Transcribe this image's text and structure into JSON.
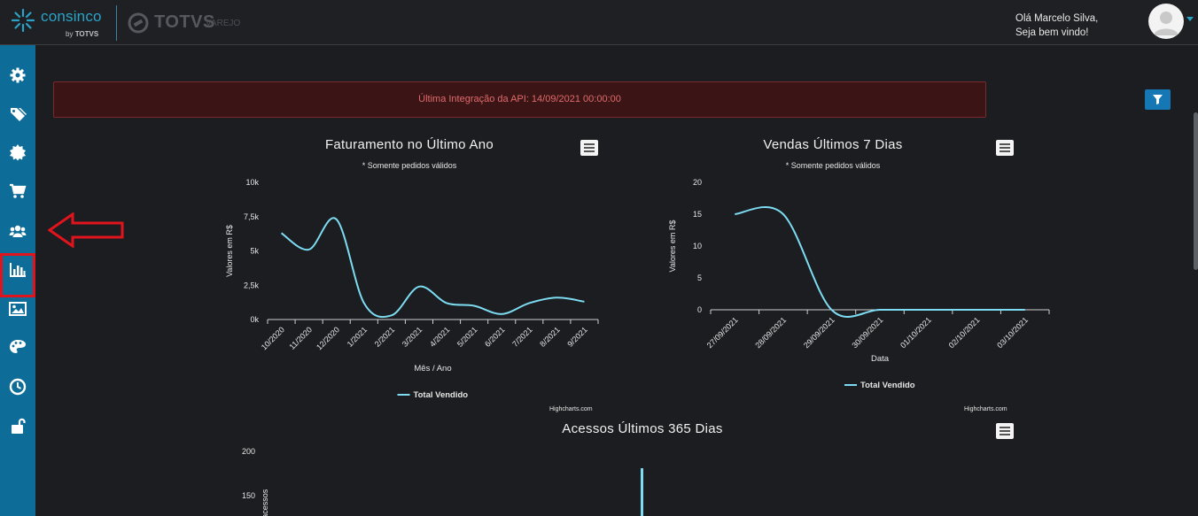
{
  "header": {
    "brand": "consinco",
    "brand_by": "by",
    "brand_by_company": "TOTVS",
    "partner_name": "TOTVS",
    "partner_sub": "VAREJO",
    "greeting_line1": "Olá Marcelo Silva,",
    "greeting_line2": "Seja bem vindo!"
  },
  "sidebar": {
    "items": [
      {
        "icon": "gear-icon"
      },
      {
        "icon": "tags-icon"
      },
      {
        "icon": "badge-icon"
      },
      {
        "icon": "cart-icon"
      },
      {
        "icon": "users-icon",
        "highlighted": true
      },
      {
        "icon": "bar-chart-icon"
      },
      {
        "icon": "image-icon"
      },
      {
        "icon": "palette-icon"
      },
      {
        "icon": "clock-icon"
      },
      {
        "icon": "unlock-icon"
      }
    ],
    "accent": "#0e6d98"
  },
  "alert": {
    "text": "Última Integração da API: 14/09/2021 00:00:00"
  },
  "credits": "Highcharts.com",
  "chart_data": [
    {
      "type": "line",
      "title": "Faturamento no Último Ano",
      "subtitle": "* Somente pedidos válidos",
      "xlabel": "Mês / Ano",
      "ylabel": "Valores em R$",
      "categories": [
        "10/2020",
        "11/2020",
        "12/2020",
        "1/2021",
        "2/2021",
        "3/2021",
        "4/2021",
        "5/2021",
        "6/2021",
        "7/2021",
        "8/2021",
        "9/2021"
      ],
      "ytick_labels": [
        "0k",
        "2,5k",
        "5k",
        "7,5k",
        "10k"
      ],
      "ylim": [
        0,
        10000
      ],
      "series": [
        {
          "name": "Total Vendido",
          "values": [
            6300,
            5100,
            7300,
            1200,
            300,
            2400,
            1200,
            1000,
            400,
            1200,
            1600,
            1300
          ]
        }
      ],
      "legend": "bottom-center",
      "color": "#7ddcf2"
    },
    {
      "type": "line",
      "title": "Vendas Últimos 7 Dias",
      "subtitle": "* Somente pedidos válidos",
      "xlabel": "Data",
      "ylabel": "Valores em R$",
      "categories": [
        "27/09/2021",
        "28/09/2021",
        "29/09/2021",
        "30/09/2021",
        "01/10/2021",
        "02/10/2021",
        "03/10/2021"
      ],
      "ytick_labels": [
        "0",
        "5",
        "10",
        "15",
        "20"
      ],
      "ylim": [
        0,
        20
      ],
      "series": [
        {
          "name": "Total Vendido",
          "values": [
            15,
            15,
            0,
            0,
            0,
            0,
            0
          ]
        }
      ],
      "legend": "bottom-center",
      "color": "#7ddcf2"
    },
    {
      "type": "bar",
      "title": "Acessos Últimos 365 Dias",
      "ylabel": "e acessos",
      "ytick_labels": [
        "150",
        "200"
      ],
      "ylim": [
        0,
        200
      ],
      "series": [
        {
          "values": [
            180
          ]
        }
      ],
      "color": "#7ddcf2"
    }
  ]
}
